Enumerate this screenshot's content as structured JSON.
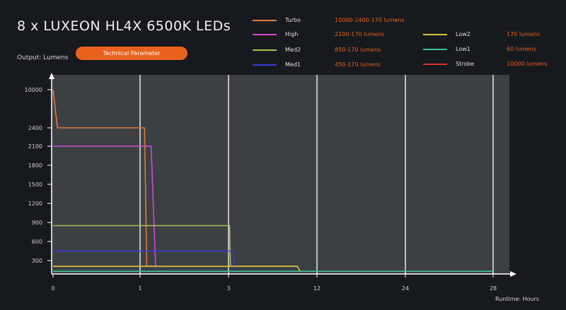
{
  "header": {
    "title": "8 x LUXEON HL4X 6500K LEDs",
    "output_label": "Output: Lumens",
    "param_button": "Technical Parameter",
    "runtime_label": "Runtime: Hours"
  },
  "legend": [
    {
      "name": "Turbo",
      "value": "10000-2400-170 lumens",
      "color": "#e07a3a"
    },
    {
      "name": "High",
      "value": "2100-170 lumens",
      "color": "#d24ad8"
    },
    {
      "name": "Med2",
      "value": "850-170 lumens",
      "color": "#a8c050"
    },
    {
      "name": "Med1",
      "value": "450-170 lumens",
      "color": "#3a3ae0"
    },
    {
      "name": "Low2",
      "value": "170 lumens",
      "color": "#e0c040"
    },
    {
      "name": "Low1",
      "value": "60 lumens",
      "color": "#40c0a0"
    },
    {
      "name": "Strobe",
      "value": "10000 lumens",
      "color": "#e03030"
    }
  ],
  "chart_data": {
    "type": "line",
    "title": "8 x LUXEON HL4X 6500K LEDs",
    "xlabel": "Runtime: Hours",
    "ylabel": "Output: Lumens",
    "x_ticks": [
      "0",
      "1",
      "3",
      "12",
      "24",
      "28"
    ],
    "y_ticks": [
      "10000",
      "2400",
      "2100",
      "1800",
      "1500",
      "1200",
      "900",
      "600",
      "300"
    ],
    "axis_note": "non-linear axes",
    "grid": "vertical lines at x ticks",
    "series": [
      {
        "name": "Turbo",
        "color": "#e07a3a",
        "points": [
          [
            0,
            10000
          ],
          [
            0.05,
            2400
          ],
          [
            1.1,
            2400
          ],
          [
            1.15,
            170
          ],
          [
            1.35,
            170
          ]
        ]
      },
      {
        "name": "High",
        "color": "#d24ad8",
        "points": [
          [
            0,
            2100
          ],
          [
            1.25,
            2100
          ],
          [
            1.35,
            170
          ],
          [
            1.55,
            170
          ]
        ]
      },
      {
        "name": "Med2",
        "color": "#a8c050",
        "points": [
          [
            0,
            850
          ],
          [
            3.1,
            850
          ],
          [
            3.2,
            170
          ],
          [
            10.1,
            170
          ]
        ]
      },
      {
        "name": "Med1",
        "color": "#3a3ae0",
        "points": [
          [
            0,
            450
          ],
          [
            3.5,
            450
          ],
          [
            3.6,
            170
          ],
          [
            4.1,
            170
          ]
        ]
      },
      {
        "name": "Low2",
        "color": "#e0c040",
        "points": [
          [
            0,
            170
          ],
          [
            4.2,
            170
          ],
          [
            10.0,
            170
          ],
          [
            10.3,
            60
          ]
        ]
      },
      {
        "name": "Low1",
        "color": "#40c0a0",
        "points": [
          [
            0,
            60
          ],
          [
            28,
            60
          ]
        ]
      }
    ]
  }
}
